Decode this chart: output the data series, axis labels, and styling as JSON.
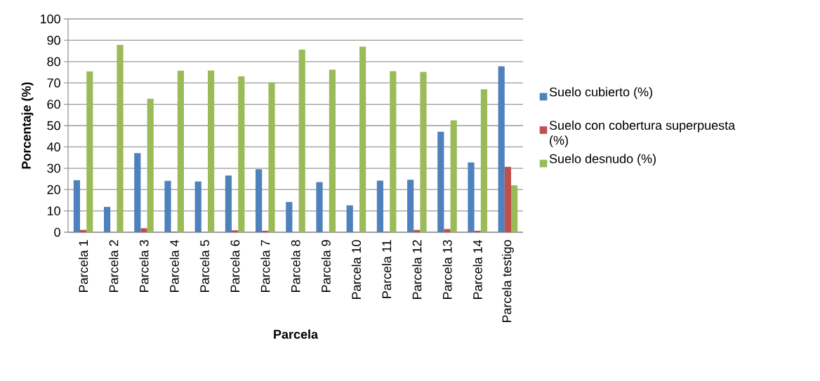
{
  "chart_data": {
    "type": "bar",
    "xlabel": "Parcela",
    "ylabel": "Porcentaje (%)",
    "categories": [
      "Parcela 1",
      "Parcela 2",
      "Parcela 3",
      "Parcela 4",
      "Parcela 5",
      "Parcela 6",
      "Parcela 7",
      "Parcela 8",
      "Parcela 9",
      "Parcela 10",
      "Parcela 11",
      "Parcela 12",
      "Parcela 13",
      "Parcela 14",
      "Parcela testigo"
    ],
    "series": [
      {
        "name": "Suelo cubierto (%)",
        "color": "#4f81bd",
        "values": [
          24.4,
          11.9,
          37.1,
          24.1,
          23.8,
          26.6,
          29.5,
          14.2,
          23.5,
          12.6,
          24.2,
          24.6,
          47.1,
          32.7,
          77.8
        ]
      },
      {
        "name": "Suelo con cobertura superpuesta (%)",
        "color": "#c0504d",
        "values": [
          1.1,
          0,
          1.9,
          0.3,
          0,
          0.9,
          0.7,
          0,
          0,
          0,
          0.3,
          1.1,
          1.5,
          0.7,
          30.7
        ]
      },
      {
        "name": "Suelo desnudo (%)",
        "color": "#9bbb59",
        "values": [
          75.4,
          87.8,
          62.6,
          75.7,
          75.8,
          73.1,
          70.2,
          85.6,
          76.2,
          87.0,
          75.5,
          75.2,
          52.5,
          67.0,
          22.0
        ]
      }
    ],
    "ylim": [
      0,
      100
    ],
    "yticks": [
      0,
      10,
      20,
      30,
      40,
      50,
      60,
      70,
      80,
      90,
      100
    ],
    "grid": "y",
    "legend": "right"
  }
}
